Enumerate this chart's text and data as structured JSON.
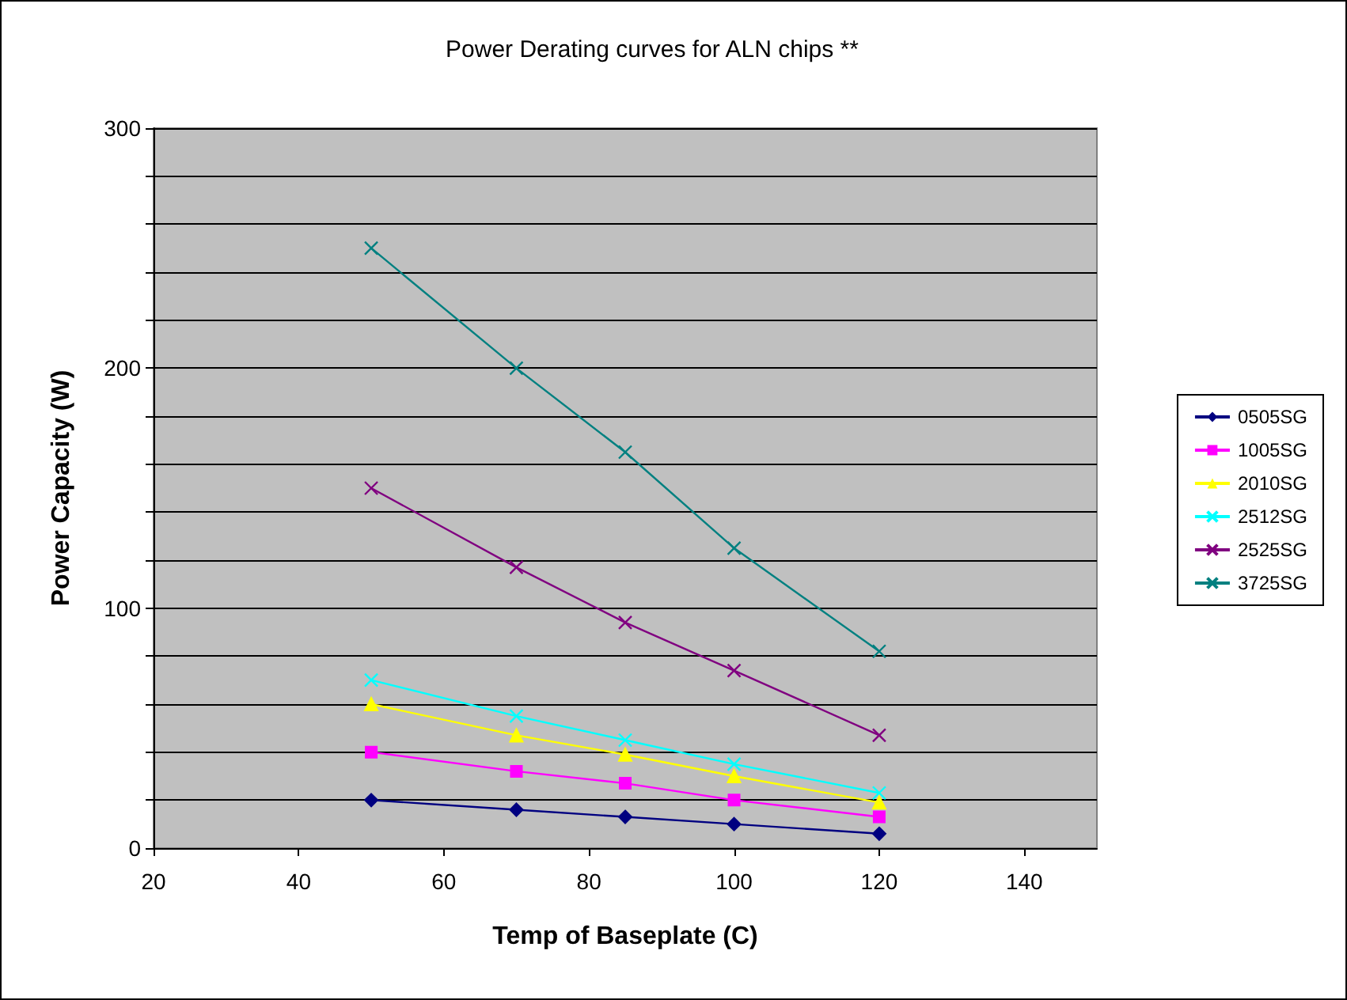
{
  "chart_data": {
    "type": "line",
    "title": "Power Derating curves for ALN chips **",
    "xlabel": "Temp of Baseplate (C)",
    "ylabel": "Power Capacity (W)",
    "x": [
      50,
      70,
      85,
      100,
      120
    ],
    "series": [
      {
        "name": "0505SG",
        "color": "#000080",
        "marker": "diamond",
        "values": [
          20,
          16,
          13,
          10,
          6
        ]
      },
      {
        "name": "1005SG",
        "color": "#ff00ff",
        "marker": "square",
        "values": [
          40,
          32,
          27,
          20,
          13
        ]
      },
      {
        "name": "2010SG",
        "color": "#ffff00",
        "marker": "triangle",
        "values": [
          60,
          47,
          39,
          30,
          19
        ]
      },
      {
        "name": "2512SG",
        "color": "#00ffff",
        "marker": "cross",
        "values": [
          70,
          55,
          45,
          35,
          23
        ]
      },
      {
        "name": "2525SG",
        "color": "#800080",
        "marker": "cross",
        "values": [
          150,
          117,
          94,
          74,
          47
        ]
      },
      {
        "name": "3725SG",
        "color": "#008080",
        "marker": "cross",
        "values": [
          250,
          200,
          165,
          125,
          82
        ]
      }
    ],
    "xlim": [
      20,
      150
    ],
    "xticks": [
      20,
      40,
      60,
      80,
      100,
      120,
      140
    ],
    "ylim": [
      0,
      300
    ],
    "yticks": [
      0,
      {
        "value": 20,
        "label": null
      },
      {
        "value": 40,
        "label": null
      },
      {
        "value": 60,
        "label": null
      },
      {
        "value": 80,
        "label": null
      },
      100,
      {
        "value": 120,
        "label": null
      },
      {
        "value": 140,
        "label": null
      },
      {
        "value": 160,
        "label": null
      },
      {
        "value": 180,
        "label": null
      },
      200,
      {
        "value": 220,
        "label": null
      },
      {
        "value": 240,
        "label": null
      },
      {
        "value": 260,
        "label": null
      },
      {
        "value": 280,
        "label": null
      },
      300
    ],
    "grid": "y",
    "legend": "right",
    "line_style": "solid"
  }
}
